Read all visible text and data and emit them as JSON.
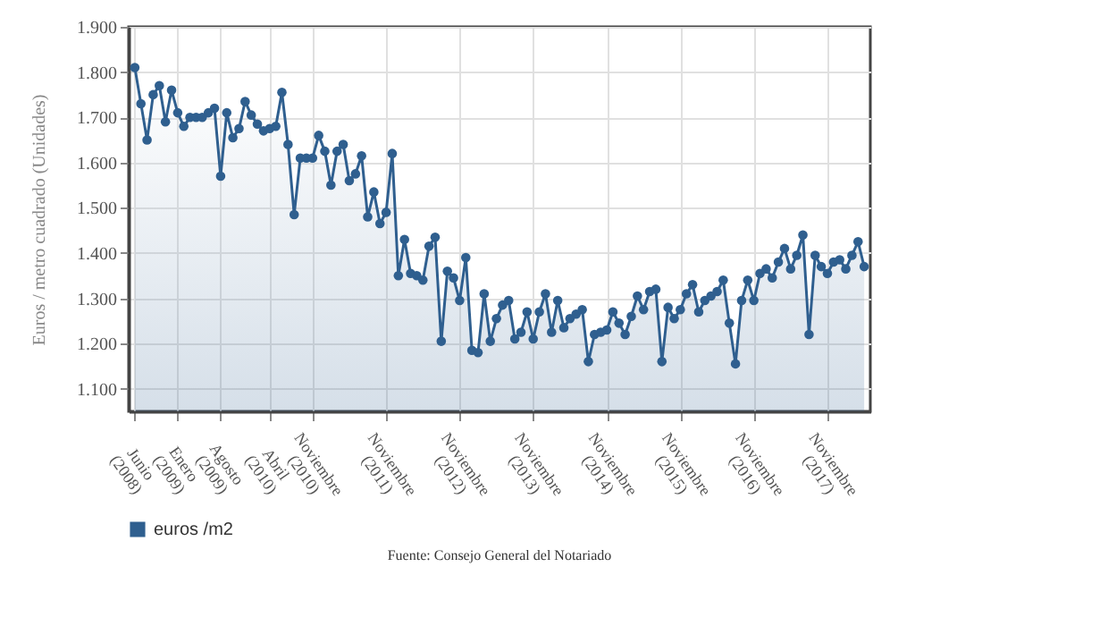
{
  "chart_data": {
    "type": "area",
    "ylabel": "Euros / metro cuadrado (Unidades)",
    "annotations": [
      "Fuente: Consejo General del Notariado"
    ],
    "categories": [
      "Junio (2008)",
      null,
      null,
      null,
      null,
      null,
      null,
      "Enero (2009)",
      null,
      null,
      null,
      null,
      null,
      null,
      "Agosto (2009)",
      null,
      null,
      null,
      null,
      null,
      null,
      null,
      "Abril (2010)",
      null,
      null,
      null,
      null,
      null,
      null,
      "Noviembre (2010)",
      null,
      null,
      null,
      null,
      null,
      null,
      null,
      null,
      null,
      null,
      null,
      "Noviembre (2011)",
      null,
      null,
      null,
      null,
      null,
      null,
      null,
      null,
      null,
      null,
      null,
      "Noviembre (2012)",
      null,
      null,
      null,
      null,
      null,
      null,
      null,
      null,
      null,
      null,
      null,
      "Noviembre (2013)",
      null,
      null,
      null,
      null,
      null,
      null,
      null,
      null,
      null,
      null,
      null,
      "Noviembre (2014)",
      null,
      null,
      null,
      null,
      null,
      null,
      null,
      null,
      null,
      null,
      null,
      "Noviembre (2015)",
      null,
      null,
      null,
      null,
      null,
      null,
      null,
      null,
      null,
      null,
      null,
      "Noviembre (2016)",
      null,
      null,
      null,
      null,
      null,
      null,
      null,
      null,
      null,
      null,
      null,
      "Noviembre (2017)",
      null,
      null,
      null,
      null,
      null,
      null
    ],
    "series": [
      {
        "name": "euros /m2",
        "color": "#2f5f8f",
        "values": [
          1810,
          1730,
          1650,
          1750,
          1770,
          1690,
          1760,
          1710,
          1680,
          1700,
          1700,
          1700,
          1710,
          1720,
          1570,
          1710,
          1655,
          1675,
          1735,
          1705,
          1685,
          1670,
          1675,
          1680,
          1755,
          1640,
          1485,
          1610,
          1610,
          1610,
          1660,
          1625,
          1550,
          1625,
          1640,
          1560,
          1575,
          1615,
          1480,
          1535,
          1465,
          1490,
          1620,
          1350,
          1430,
          1355,
          1350,
          1340,
          1415,
          1435,
          1205,
          1360,
          1345,
          1295,
          1390,
          1185,
          1180,
          1310,
          1205,
          1255,
          1285,
          1295,
          1210,
          1225,
          1270,
          1210,
          1270,
          1310,
          1225,
          1295,
          1235,
          1255,
          1265,
          1275,
          1160,
          1220,
          1225,
          1230,
          1270,
          1245,
          1220,
          1260,
          1305,
          1275,
          1315,
          1320,
          1160,
          1280,
          1255,
          1275,
          1310,
          1330,
          1270,
          1295,
          1305,
          1315,
          1340,
          1245,
          1155,
          1295,
          1340,
          1295,
          1355,
          1365,
          1345,
          1380,
          1410,
          1365,
          1395,
          1440,
          1220,
          1395,
          1370,
          1355,
          1380,
          1385,
          1365,
          1395,
          1425,
          1370
        ]
      }
    ],
    "ylim": [
      1050,
      1900
    ],
    "yticks": [
      {
        "value": 1100,
        "label": "1.100"
      },
      {
        "value": 1200,
        "label": "1.200"
      },
      {
        "value": 1300,
        "label": "1.300"
      },
      {
        "value": 1400,
        "label": "1.400"
      },
      {
        "value": 1500,
        "label": "1.500"
      },
      {
        "value": 1600,
        "label": "1.600"
      },
      {
        "value": 1700,
        "label": "1.700"
      },
      {
        "value": 1800,
        "label": "1.800"
      },
      {
        "value": 1900,
        "label": "1.900"
      }
    ],
    "grid": true,
    "legend": "bottom",
    "marker": "circle",
    "line_style": "solid"
  }
}
